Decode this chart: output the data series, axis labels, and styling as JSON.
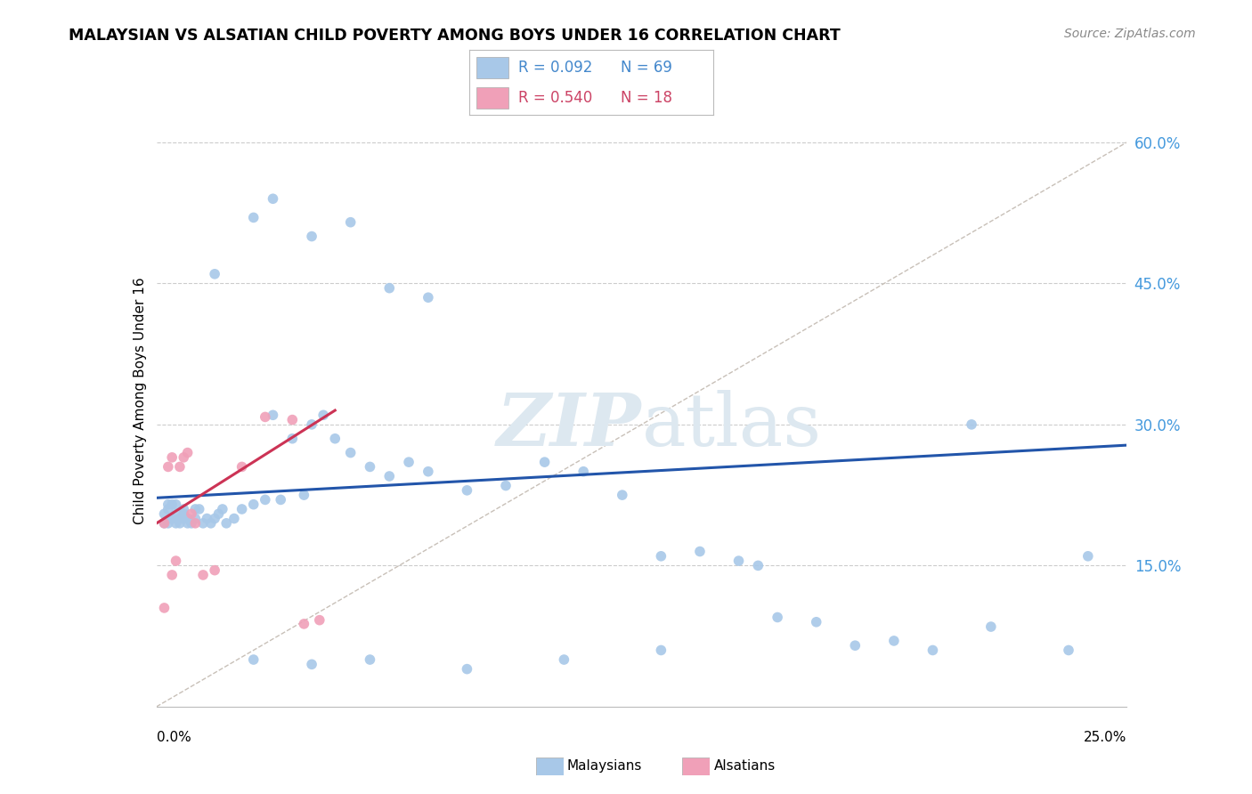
{
  "title": "MALAYSIAN VS ALSATIAN CHILD POVERTY AMONG BOYS UNDER 16 CORRELATION CHART",
  "source": "Source: ZipAtlas.com",
  "ylabel": "Child Poverty Among Boys Under 16",
  "xlim": [
    0.0,
    0.25
  ],
  "ylim": [
    0.0,
    0.65
  ],
  "ytick_vals": [
    0.15,
    0.3,
    0.45,
    0.6
  ],
  "ytick_labels": [
    "15.0%",
    "30.0%",
    "45.0%",
    "60.0%"
  ],
  "color_malaysian": "#a8c8e8",
  "color_alsatian": "#f0a0b8",
  "color_line_malaysian": "#2255aa",
  "color_line_alsatian": "#cc3355",
  "color_diagonal": "#c8c0b8",
  "color_grid": "#cccccc",
  "color_text_blue": "#4488cc",
  "color_text_red": "#cc4466",
  "color_ytick_blue": "#4499dd",
  "watermark_color": "#dde8f0",
  "mal_line": [
    0.0,
    0.25,
    0.222,
    0.278
  ],
  "als_line": [
    0.0,
    0.046,
    0.195,
    0.315
  ],
  "malaysian_x": [
    0.002,
    0.002,
    0.003,
    0.003,
    0.003,
    0.004,
    0.004,
    0.004,
    0.005,
    0.005,
    0.005,
    0.006,
    0.006,
    0.007,
    0.007,
    0.007,
    0.008,
    0.008,
    0.009,
    0.01,
    0.01,
    0.011,
    0.012,
    0.013,
    0.014,
    0.015,
    0.016,
    0.017,
    0.018,
    0.02,
    0.022,
    0.025,
    0.028,
    0.03,
    0.032,
    0.035,
    0.038,
    0.04,
    0.043,
    0.046,
    0.05,
    0.055,
    0.06,
    0.065,
    0.07,
    0.08,
    0.09,
    0.1,
    0.11,
    0.12,
    0.13,
    0.14,
    0.15,
    0.16,
    0.17,
    0.18,
    0.19,
    0.2,
    0.215,
    0.235,
    0.025,
    0.04,
    0.055,
    0.08,
    0.105,
    0.13,
    0.155,
    0.21,
    0.24
  ],
  "malaysian_y": [
    0.195,
    0.205,
    0.195,
    0.21,
    0.215,
    0.2,
    0.215,
    0.2,
    0.195,
    0.205,
    0.215,
    0.195,
    0.2,
    0.2,
    0.205,
    0.21,
    0.195,
    0.2,
    0.195,
    0.2,
    0.21,
    0.21,
    0.195,
    0.2,
    0.195,
    0.2,
    0.205,
    0.21,
    0.195,
    0.2,
    0.21,
    0.215,
    0.22,
    0.31,
    0.22,
    0.285,
    0.225,
    0.3,
    0.31,
    0.285,
    0.27,
    0.255,
    0.245,
    0.26,
    0.25,
    0.23,
    0.235,
    0.26,
    0.25,
    0.225,
    0.16,
    0.165,
    0.155,
    0.095,
    0.09,
    0.065,
    0.07,
    0.06,
    0.085,
    0.06,
    0.05,
    0.045,
    0.05,
    0.04,
    0.05,
    0.06,
    0.15,
    0.3,
    0.16
  ],
  "malaysian_y_high": [
    0.015,
    0.025,
    0.03,
    0.04,
    0.05,
    0.06,
    0.07
  ],
  "malaysian_x_high": [
    0.46,
    0.52,
    0.54,
    0.5,
    0.515,
    0.445,
    0.435
  ],
  "alsatian_x": [
    0.002,
    0.002,
    0.003,
    0.004,
    0.004,
    0.005,
    0.006,
    0.007,
    0.008,
    0.009,
    0.01,
    0.012,
    0.015,
    0.022,
    0.028,
    0.035,
    0.038,
    0.042
  ],
  "alsatian_y": [
    0.195,
    0.105,
    0.255,
    0.14,
    0.265,
    0.155,
    0.255,
    0.265,
    0.27,
    0.205,
    0.195,
    0.14,
    0.145,
    0.255,
    0.308,
    0.305,
    0.088,
    0.092
  ]
}
